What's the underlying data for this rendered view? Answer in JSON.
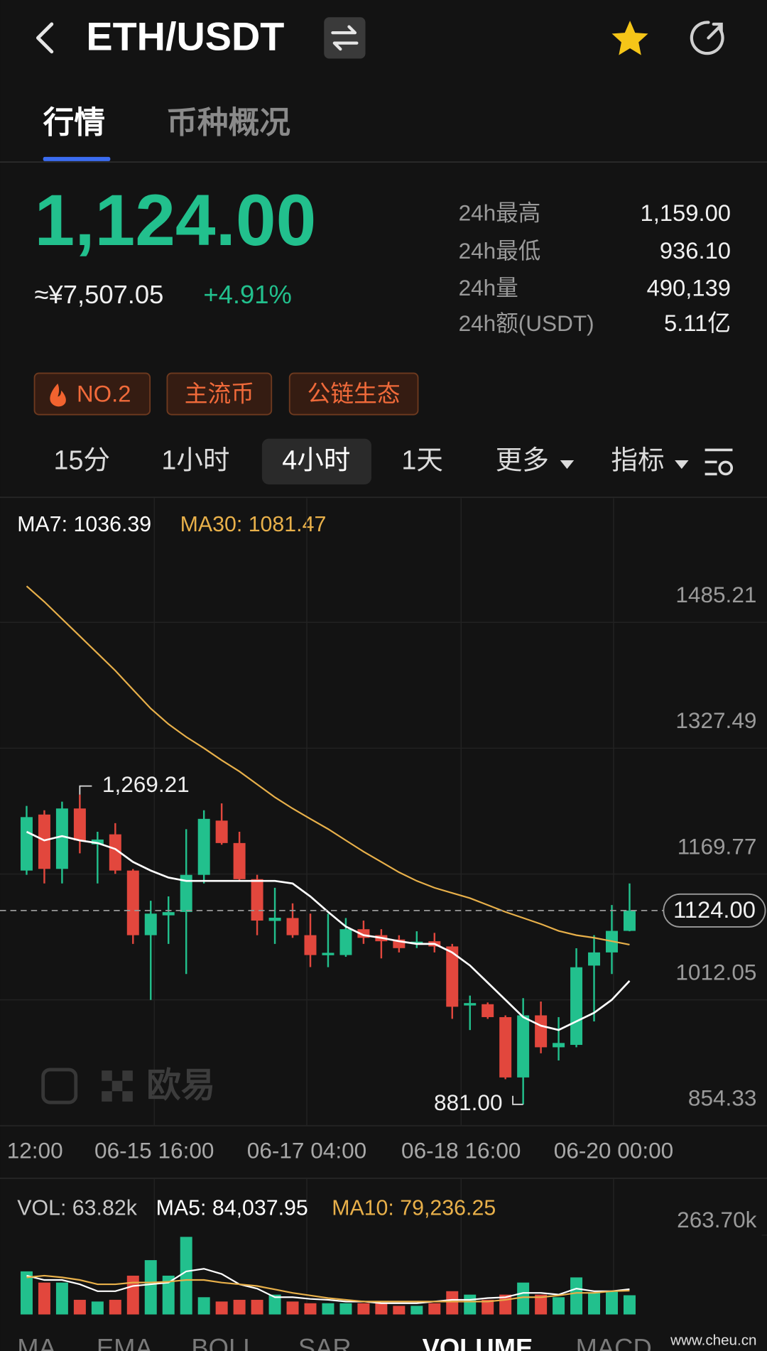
{
  "header": {
    "title": "ETH/USDT"
  },
  "tabs": [
    "行情",
    "币种概况"
  ],
  "price": {
    "last": "1,124.00",
    "cny": "≈¥7,507.05",
    "change": "+4.91%"
  },
  "stats": [
    {
      "label": "24h最高",
      "value": "1,159.00"
    },
    {
      "label": "24h最低",
      "value": "936.10"
    },
    {
      "label": "24h量",
      "value": "490,139"
    },
    {
      "label": "24h额(USDT)",
      "value": "5.11亿"
    }
  ],
  "tags": [
    "NO.2",
    "主流币",
    "公链生态"
  ],
  "intervals": [
    "15分",
    "1小时",
    "4小时",
    "1天",
    "更多",
    "指标"
  ],
  "indicator_tabs": [
    "MA",
    "EMA",
    "BOLL",
    "SAR",
    "VOLUME",
    "MACD"
  ],
  "watermark": {
    "brand": "欧易",
    "site": "www.cheu.cn"
  },
  "chart_data": [
    {
      "type": "candlestick",
      "up_color": "#22c08d",
      "down_color": "#e2473d",
      "open": [
        1174.1,
        1244.3,
        1176.2,
        1251.9,
        1207.0,
        1219.5,
        1174.1,
        1093.1,
        1118.0,
        1122.2,
        1168.7,
        1236.7,
        1208.6,
        1163.3,
        1111.0,
        1114.6,
        1093.1,
        1068.0,
        1068.2,
        1100.6,
        1093.1,
        1087.7,
        1082.0,
        1085.5,
        1079.0,
        1005.0,
        1006.6,
        990.4,
        914.8,
        992.6,
        952.6,
        955.6,
        1055.0,
        1071.5,
        1098.5
      ],
      "high": [
        1255.1,
        1249.7,
        1260.5,
        1269.21,
        1222.7,
        1233.5,
        1176.0,
        1136.2,
        1141.7,
        1225.9,
        1249.7,
        1258.3,
        1222.7,
        1168.7,
        1152.5,
        1133.0,
        1120.1,
        1120.0,
        1114.6,
        1111.4,
        1100.6,
        1093.0,
        1098.0,
        1096.0,
        1082.2,
        1017.4,
        1008.8,
        992.6,
        1014.2,
        1009.9,
        990.4,
        1076.7,
        1093.1,
        1130.9,
        1157.9
      ],
      "low": [
        1168.7,
        1157.9,
        1157.9,
        1195.7,
        1157.9,
        1170.0,
        1082.2,
        1012.0,
        1082.2,
        1044.4,
        1157.9,
        1206.5,
        1161.1,
        1093.1,
        1082.2,
        1089.8,
        1053.1,
        1053.0,
        1066.0,
        1082.2,
        1064.0,
        1071.5,
        1077.0,
        1071.5,
        988.2,
        974.2,
        988.2,
        912.6,
        881.0,
        945.1,
        936.1,
        952.6,
        985.0,
        1044.4,
        1098.0
      ],
      "close": [
        1241.1,
        1176.2,
        1251.9,
        1211.9,
        1213.0,
        1174.1,
        1093.1,
        1120.1,
        1122.0,
        1168.7,
        1238.9,
        1208.6,
        1163.3,
        1111.4,
        1115.0,
        1093.1,
        1068.2,
        1071.0,
        1100.6,
        1089.8,
        1085.5,
        1076.9,
        1085.0,
        1079.0,
        1003.4,
        1008.0,
        990.4,
        914.8,
        992.6,
        952.6,
        958.0,
        1052.9,
        1071.5,
        1098.5,
        1124.0
      ],
      "series": [
        {
          "label": "MA7: 1036.39",
          "color": "#ffffff",
          "values": [
            1222.7,
            1211.9,
            1217.3,
            1211.9,
            1208.6,
            1201.1,
            1184.9,
            1174.1,
            1165.4,
            1161.1,
            1161.1,
            1161.1,
            1161.1,
            1161.1,
            1161.1,
            1157.9,
            1141.7,
            1122.2,
            1103.9,
            1093.1,
            1089.8,
            1085.5,
            1082.2,
            1082.2,
            1071.5,
            1055.2,
            1033.7,
            1012.1,
            990.4,
            979.6,
            974.2,
            985.0,
            995.8,
            1012.1,
            1035.8
          ]
        },
        {
          "label": "MA30: 1081.47",
          "color": "#e8b04a",
          "values": [
            1530.6,
            1511.1,
            1489.5,
            1467.9,
            1446.3,
            1424.7,
            1400.9,
            1377.2,
            1357.7,
            1341.5,
            1327.5,
            1312.4,
            1298.3,
            1282.1,
            1265.9,
            1251.9,
            1238.9,
            1226.2,
            1211.9,
            1197.9,
            1184.9,
            1171.9,
            1161.1,
            1152.5,
            1146.0,
            1139.5,
            1130.9,
            1122.2,
            1114.7,
            1107.1,
            1098.5,
            1093.1,
            1089.8,
            1085.5,
            1081.2
          ]
        }
      ],
      "ylim": [
        854.33,
        1640.8
      ],
      "yticks": [
        854.33,
        1012.05,
        1169.77,
        1327.49,
        1485.21
      ],
      "xlim": [
        -1.5,
        41.75
      ],
      "xticks": [
        {
          "value": 0.6,
          "label": "12:00"
        },
        {
          "value": 7.2,
          "label": "06-15 16:00"
        },
        {
          "value": 15.8,
          "label": "06-17 04:00"
        },
        {
          "value": 24.5,
          "label": "06-18 16:00"
        },
        {
          "value": 33.1,
          "label": "06-20 00:00"
        }
      ],
      "grid": true,
      "last_price": {
        "value": 1124,
        "label": "1124.00"
      },
      "annotations": {
        "max": "1,269.21",
        "min": "881.00"
      }
    },
    {
      "type": "bar",
      "legend": "VOL: 63.82k",
      "values": [
        143.3,
        106.0,
        106.0,
        48.7,
        43.0,
        48.7,
        129.0,
        180.6,
        129.0,
        258.0,
        57.3,
        43.0,
        48.7,
        48.7,
        65.9,
        43.0,
        37.3,
        37.3,
        37.3,
        37.3,
        37.3,
        28.7,
        28.7,
        37.3,
        77.4,
        65.9,
        48.7,
        65.9,
        106.0,
        65.9,
        57.3,
        123.2,
        71.7,
        77.4,
        63.82
      ],
      "series": [
        {
          "label": "MA5: 84,037.95",
          "color": "#ffffff",
          "values": [
            129.0,
            114.6,
            114.6,
            100.3,
            77.4,
            77.4,
            94.6,
            100.3,
            106.0,
            143.3,
            151.9,
            134.7,
            100.3,
            86.0,
            57.3,
            57.3,
            51.6,
            48.7,
            43.0,
            43.0,
            37.3,
            37.3,
            37.3,
            43.0,
            48.7,
            48.7,
            54.5,
            57.3,
            71.7,
            71.7,
            65.9,
            86.0,
            77.4,
            77.4,
            84.04
          ]
        },
        {
          "label": "MA10: 79,236.25",
          "color": "#e8b04a",
          "values": [
            123.2,
            129.0,
            123.2,
            114.6,
            100.3,
            100.3,
            106.0,
            106.0,
            108.9,
            114.6,
            114.6,
            106.0,
            100.3,
            94.6,
            83.1,
            71.7,
            63.1,
            54.5,
            48.7,
            43.0,
            43.0,
            43.0,
            43.0,
            43.0,
            43.0,
            43.0,
            43.0,
            48.7,
            57.3,
            57.3,
            63.1,
            71.7,
            71.7,
            77.4,
            79.24
          ]
        }
      ],
      "ylim": [
        0,
        263.7
      ],
      "yticks": [
        {
          "value": 263.7,
          "label": "263.70k"
        }
      ]
    }
  ]
}
